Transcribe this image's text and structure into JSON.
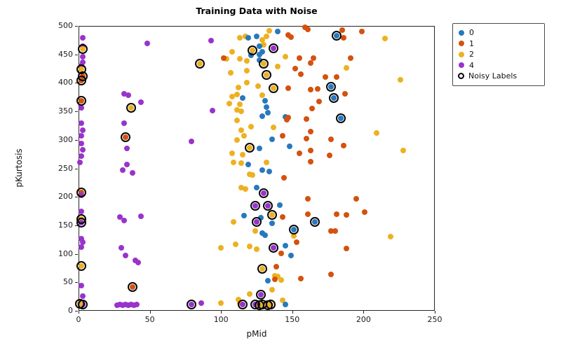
{
  "chart_data": {
    "type": "scatter",
    "title": "Training Data with Noise",
    "xlabel": "pMid",
    "ylabel": "pKurtosis",
    "xlim": [
      0,
      250
    ],
    "ylim": [
      0,
      500
    ],
    "xticks": [
      0,
      50,
      100,
      150,
      200,
      250
    ],
    "yticks": [
      0,
      50,
      100,
      150,
      200,
      250,
      300,
      350,
      400,
      450,
      500
    ],
    "grid": false,
    "legend_position": "outside-top-right",
    "classes": [
      {
        "label": "0",
        "color": "#2878BE"
      },
      {
        "label": "1",
        "color": "#D4520E"
      },
      {
        "label": "2",
        "color": "#EDB120"
      },
      {
        "label": "4",
        "color": "#9933CC"
      }
    ],
    "noisy_label_entry": "Noisy Labels",
    "noisy_ring_color": "#050505",
    "points": [
      [
        3,
        479,
        "4",
        0
      ],
      [
        3,
        464,
        "4",
        0
      ],
      [
        3,
        459,
        "2",
        1
      ],
      [
        3,
        446,
        "4",
        0
      ],
      [
        3,
        436,
        "4",
        0
      ],
      [
        2,
        430,
        "4",
        0
      ],
      [
        2,
        424,
        "2",
        1
      ],
      [
        3,
        412,
        "1",
        1
      ],
      [
        2,
        404,
        "1",
        1
      ],
      [
        2,
        369,
        "1",
        1
      ],
      [
        2,
        356,
        "4",
        0
      ],
      [
        2,
        329,
        "4",
        0
      ],
      [
        3,
        317,
        "4",
        0
      ],
      [
        2,
        307,
        "4",
        0
      ],
      [
        2,
        294,
        "4",
        0
      ],
      [
        3,
        282,
        "4",
        0
      ],
      [
        2,
        272,
        "4",
        0
      ],
      [
        1,
        261,
        "4",
        0
      ],
      [
        2,
        208,
        "1",
        1
      ],
      [
        2,
        203,
        "4",
        0
      ],
      [
        2,
        175,
        "4",
        0
      ],
      [
        2,
        161,
        "2",
        1
      ],
      [
        2,
        155,
        "4",
        1
      ],
      [
        2,
        126,
        "4",
        0
      ],
      [
        3,
        120,
        "4",
        0
      ],
      [
        2,
        112,
        "4",
        0
      ],
      [
        2,
        79,
        "2",
        1
      ],
      [
        2,
        44,
        "4",
        0
      ],
      [
        3,
        26,
        "4",
        0
      ],
      [
        3,
        11,
        "4",
        1
      ],
      [
        1,
        12,
        "2",
        1
      ],
      [
        32,
        381,
        "4",
        0
      ],
      [
        35,
        378,
        "4",
        0
      ],
      [
        44,
        366,
        "4",
        0
      ],
      [
        37,
        356,
        "2",
        1
      ],
      [
        32,
        329,
        "4",
        0
      ],
      [
        33,
        305,
        "1",
        1
      ],
      [
        34,
        285,
        "4",
        0
      ],
      [
        34,
        257,
        "4",
        0
      ],
      [
        31,
        247,
        "4",
        0
      ],
      [
        38,
        242,
        "4",
        0
      ],
      [
        29,
        165,
        "4",
        0
      ],
      [
        32,
        159,
        "4",
        0
      ],
      [
        44,
        166,
        "4",
        0
      ],
      [
        30,
        110,
        "4",
        0
      ],
      [
        33,
        97,
        "4",
        0
      ],
      [
        40,
        88,
        "4",
        0
      ],
      [
        42,
        85,
        "4",
        0
      ],
      [
        38,
        42,
        "1",
        1
      ],
      [
        27,
        10,
        "4",
        0
      ],
      [
        29,
        11,
        "4",
        0
      ],
      [
        31,
        10,
        "4",
        0
      ],
      [
        33,
        11,
        "4",
        0
      ],
      [
        35,
        10,
        "4",
        0
      ],
      [
        37,
        11,
        "4",
        0
      ],
      [
        39,
        10,
        "4",
        0
      ],
      [
        41,
        11,
        "4",
        0
      ],
      [
        48,
        469,
        "4",
        0
      ],
      [
        79,
        11,
        "4",
        1
      ],
      [
        86,
        13,
        "4",
        0
      ],
      [
        79,
        297,
        "4",
        0
      ],
      [
        85,
        434,
        "2",
        1
      ],
      [
        93,
        474,
        "4",
        0
      ],
      [
        94,
        351,
        "4",
        0
      ],
      [
        100,
        13,
        "2",
        0
      ],
      [
        113,
        479,
        "2",
        0
      ],
      [
        117,
        481,
        "2",
        0
      ],
      [
        119,
        479,
        "0",
        0
      ],
      [
        125,
        481,
        "0",
        0
      ],
      [
        129,
        476,
        "2",
        0
      ],
      [
        132,
        482,
        "2",
        0
      ],
      [
        134,
        491,
        "2",
        0
      ],
      [
        140,
        490,
        "0",
        0
      ],
      [
        130,
        467,
        "2",
        0
      ],
      [
        127,
        464,
        "0",
        0
      ],
      [
        122,
        457,
        "2",
        1
      ],
      [
        137,
        461,
        "4",
        1
      ],
      [
        129,
        454,
        "0",
        0
      ],
      [
        108,
        455,
        "2",
        0
      ],
      [
        127,
        450,
        "0",
        0
      ],
      [
        104,
        442,
        "2",
        0
      ],
      [
        102,
        444,
        "1",
        0
      ],
      [
        113,
        442,
        "2",
        0
      ],
      [
        121,
        448,
        "0",
        0
      ],
      [
        118,
        439,
        "2",
        0
      ],
      [
        127,
        440,
        "0",
        0
      ],
      [
        140,
        429,
        "2",
        0
      ],
      [
        130,
        434,
        "2",
        1
      ],
      [
        145,
        446,
        "2",
        0
      ],
      [
        155,
        444,
        "1",
        0
      ],
      [
        107,
        418,
        "2",
        0
      ],
      [
        132,
        414,
        "2",
        1
      ],
      [
        118,
        421,
        "2",
        0
      ],
      [
        112,
        392,
        "2",
        0
      ],
      [
        118,
        400,
        "2",
        0
      ],
      [
        126,
        394,
        "2",
        0
      ],
      [
        137,
        391,
        "2",
        1
      ],
      [
        108,
        376,
        "2",
        0
      ],
      [
        111,
        379,
        "2",
        0
      ],
      [
        115,
        374,
        "0",
        0
      ],
      [
        106,
        364,
        "2",
        0
      ],
      [
        113,
        362,
        "2",
        0
      ],
      [
        111,
        352,
        "2",
        0
      ],
      [
        114,
        350,
        "2",
        0
      ],
      [
        131,
        368,
        "0",
        0
      ],
      [
        132,
        358,
        "0",
        0
      ],
      [
        133,
        348,
        "0",
        0
      ],
      [
        129,
        341,
        "0",
        0
      ],
      [
        129,
        378,
        "2",
        0
      ],
      [
        147,
        391,
        "1",
        0
      ],
      [
        145,
        340,
        "0",
        0
      ],
      [
        147,
        339,
        "1",
        0
      ],
      [
        152,
        425,
        "1",
        0
      ],
      [
        156,
        415,
        "1",
        0
      ],
      [
        146,
        335,
        "1",
        0
      ],
      [
        160,
        337,
        "1",
        0
      ],
      [
        111,
        334,
        "2",
        0
      ],
      [
        121,
        323,
        "2",
        0
      ],
      [
        137,
        322,
        "2",
        0
      ],
      [
        143,
        307,
        "1",
        0
      ],
      [
        136,
        301,
        "0",
        0
      ],
      [
        114,
        317,
        "2",
        0
      ],
      [
        111,
        300,
        "2",
        0
      ],
      [
        116,
        307,
        "2",
        0
      ],
      [
        120,
        286,
        "2",
        1
      ],
      [
        127,
        285,
        "0",
        0
      ],
      [
        108,
        276,
        "2",
        0
      ],
      [
        115,
        274,
        "2",
        0
      ],
      [
        148,
        289,
        "0",
        0
      ],
      [
        109,
        260,
        "2",
        0
      ],
      [
        114,
        259,
        "2",
        0
      ],
      [
        119,
        257,
        "0",
        0
      ],
      [
        132,
        260,
        "2",
        0
      ],
      [
        129,
        247,
        "0",
        0
      ],
      [
        134,
        244,
        "0",
        0
      ],
      [
        120,
        240,
        "2",
        0
      ],
      [
        122,
        238,
        "2",
        0
      ],
      [
        144,
        234,
        "1",
        0
      ],
      [
        114,
        216,
        "2",
        0
      ],
      [
        117,
        214,
        "2",
        0
      ],
      [
        125,
        216,
        "0",
        0
      ],
      [
        130,
        207,
        "4",
        1
      ],
      [
        124,
        184,
        "4",
        1
      ],
      [
        133,
        184,
        "4",
        1
      ],
      [
        141,
        186,
        "0",
        0
      ],
      [
        136,
        168,
        "2",
        1
      ],
      [
        116,
        167,
        "0",
        0
      ],
      [
        143,
        165,
        "1",
        0
      ],
      [
        125,
        156,
        "4",
        1
      ],
      [
        128,
        164,
        "0",
        0
      ],
      [
        136,
        153,
        "0",
        0
      ],
      [
        124,
        140,
        "2",
        0
      ],
      [
        129,
        136,
        "0",
        0
      ],
      [
        131,
        133,
        "0",
        0
      ],
      [
        151,
        143,
        "0",
        1
      ],
      [
        151,
        131,
        "2",
        0
      ],
      [
        153,
        121,
        "1",
        0
      ],
      [
        109,
        156,
        "2",
        0
      ],
      [
        100,
        110,
        "2",
        0
      ],
      [
        110,
        117,
        "2",
        0
      ],
      [
        120,
        113,
        "2",
        0
      ],
      [
        125,
        108,
        "2",
        0
      ],
      [
        137,
        110,
        "4",
        1
      ],
      [
        145,
        114,
        "0",
        0
      ],
      [
        142,
        101,
        "1",
        0
      ],
      [
        149,
        97,
        "0",
        0
      ],
      [
        156,
        56,
        "1",
        0
      ],
      [
        129,
        74,
        "2",
        1
      ],
      [
        139,
        78,
        "1",
        0
      ],
      [
        138,
        62,
        "2",
        0
      ],
      [
        140,
        60,
        "2",
        0
      ],
      [
        133,
        53,
        "0",
        0
      ],
      [
        138,
        55,
        "1",
        0
      ],
      [
        142,
        54,
        "2",
        0
      ],
      [
        120,
        30,
        "2",
        0
      ],
      [
        128,
        28,
        "4",
        1
      ],
      [
        136,
        37,
        "2",
        0
      ],
      [
        143,
        19,
        "2",
        0
      ],
      [
        145,
        11,
        "0",
        0
      ],
      [
        113,
        13,
        "2",
        0
      ],
      [
        115,
        11,
        "4",
        1
      ],
      [
        124,
        11,
        "4",
        1
      ],
      [
        127,
        10,
        "2",
        1
      ],
      [
        129,
        11,
        "2",
        1
      ],
      [
        133,
        10,
        "2",
        1
      ],
      [
        135,
        11,
        "2",
        1
      ],
      [
        112,
        20,
        "2",
        0
      ],
      [
        147,
        484,
        "1",
        0
      ],
      [
        149,
        480,
        "1",
        0
      ],
      [
        159,
        497,
        "1",
        0
      ],
      [
        161,
        494,
        "1",
        0
      ],
      [
        181,
        483,
        "0",
        1
      ],
      [
        185,
        493,
        "1",
        0
      ],
      [
        186,
        479,
        "1",
        0
      ],
      [
        199,
        490,
        "1",
        0
      ],
      [
        215,
        478,
        "2",
        0
      ],
      [
        165,
        444,
        "1",
        0
      ],
      [
        163,
        435,
        "1",
        0
      ],
      [
        191,
        443,
        "1",
        0
      ],
      [
        188,
        426,
        "2",
        0
      ],
      [
        173,
        410,
        "1",
        0
      ],
      [
        181,
        410,
        "1",
        0
      ],
      [
        177,
        393,
        "0",
        1
      ],
      [
        163,
        388,
        "1",
        0
      ],
      [
        168,
        389,
        "1",
        0
      ],
      [
        187,
        381,
        "1",
        0
      ],
      [
        179,
        373,
        "0",
        1
      ],
      [
        169,
        367,
        "1",
        0
      ],
      [
        164,
        355,
        "1",
        0
      ],
      [
        226,
        405,
        "2",
        0
      ],
      [
        184,
        338,
        "0",
        1
      ],
      [
        163,
        315,
        "1",
        0
      ],
      [
        160,
        302,
        "1",
        0
      ],
      [
        177,
        301,
        "1",
        0
      ],
      [
        186,
        290,
        "1",
        0
      ],
      [
        163,
        281,
        "1",
        0
      ],
      [
        176,
        273,
        "1",
        0
      ],
      [
        163,
        262,
        "1",
        0
      ],
      [
        155,
        276,
        "1",
        0
      ],
      [
        209,
        312,
        "2",
        0
      ],
      [
        228,
        281,
        "2",
        0
      ],
      [
        161,
        196,
        "1",
        0
      ],
      [
        195,
        196,
        "1",
        0
      ],
      [
        201,
        173,
        "1",
        0
      ],
      [
        181,
        170,
        "1",
        0
      ],
      [
        188,
        168,
        "1",
        0
      ],
      [
        166,
        156,
        "0",
        1
      ],
      [
        161,
        169,
        "1",
        0
      ],
      [
        177,
        140,
        "1",
        0
      ],
      [
        180,
        140,
        "1",
        0
      ],
      [
        219,
        130,
        "2",
        0
      ],
      [
        188,
        109,
        "1",
        0
      ],
      [
        177,
        64,
        "1",
        0
      ]
    ]
  }
}
